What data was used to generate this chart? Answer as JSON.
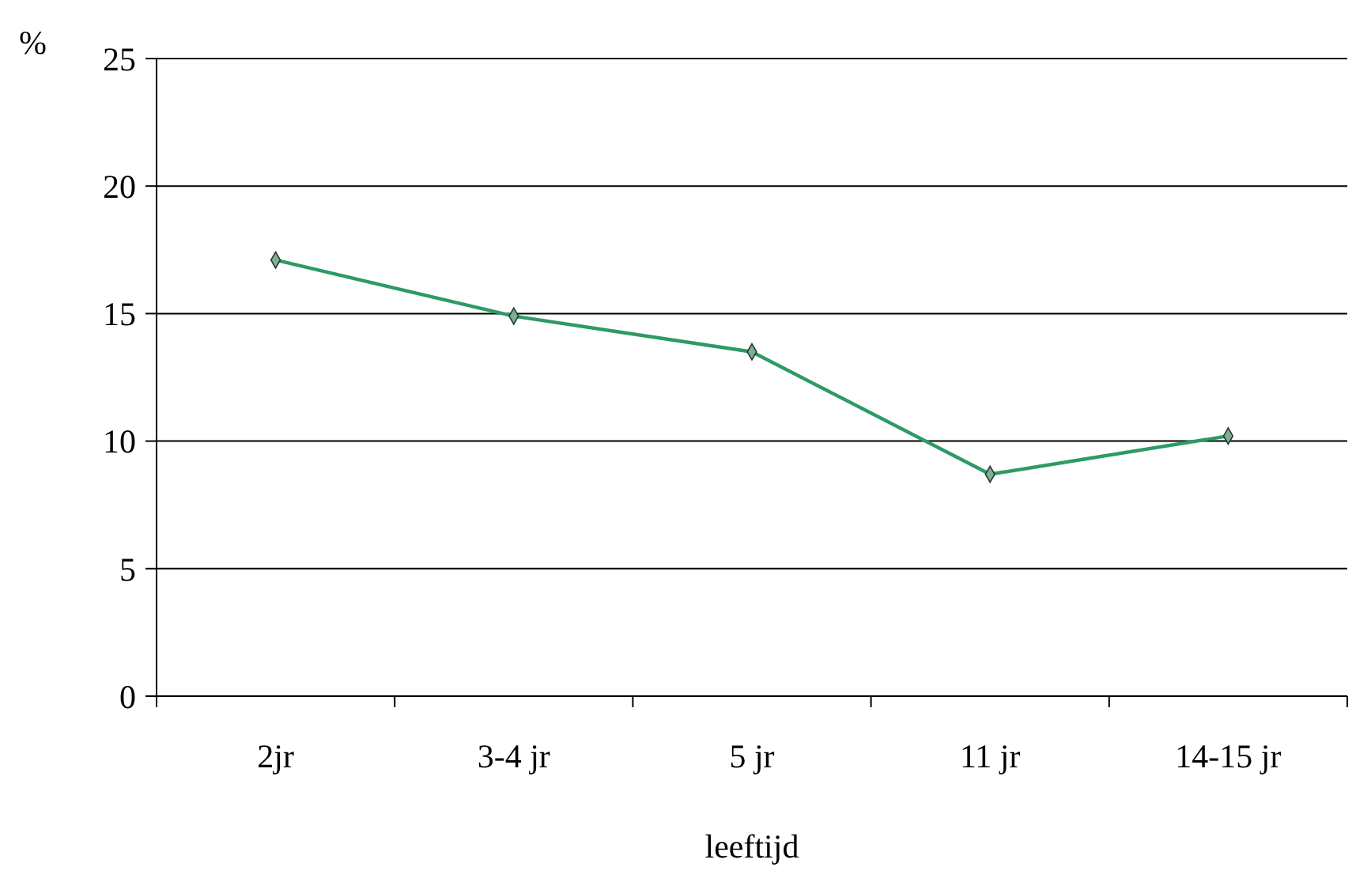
{
  "chart_data": {
    "type": "line",
    "xlabel": "leeftijd",
    "ylabel": "%",
    "categories": [
      "2jr",
      "3-4 jr",
      "5 jr",
      "11 jr",
      "14-15 jr"
    ],
    "series": [
      {
        "color": "#2e9a66",
        "values": [
          17.1,
          14.9,
          13.5,
          8.7,
          10.2
        ]
      }
    ],
    "ylim": [
      0,
      25
    ],
    "yticks": [
      0,
      5,
      10,
      15,
      20,
      25
    ],
    "grid": "y",
    "marker": "diamond",
    "line_style": "solid"
  }
}
